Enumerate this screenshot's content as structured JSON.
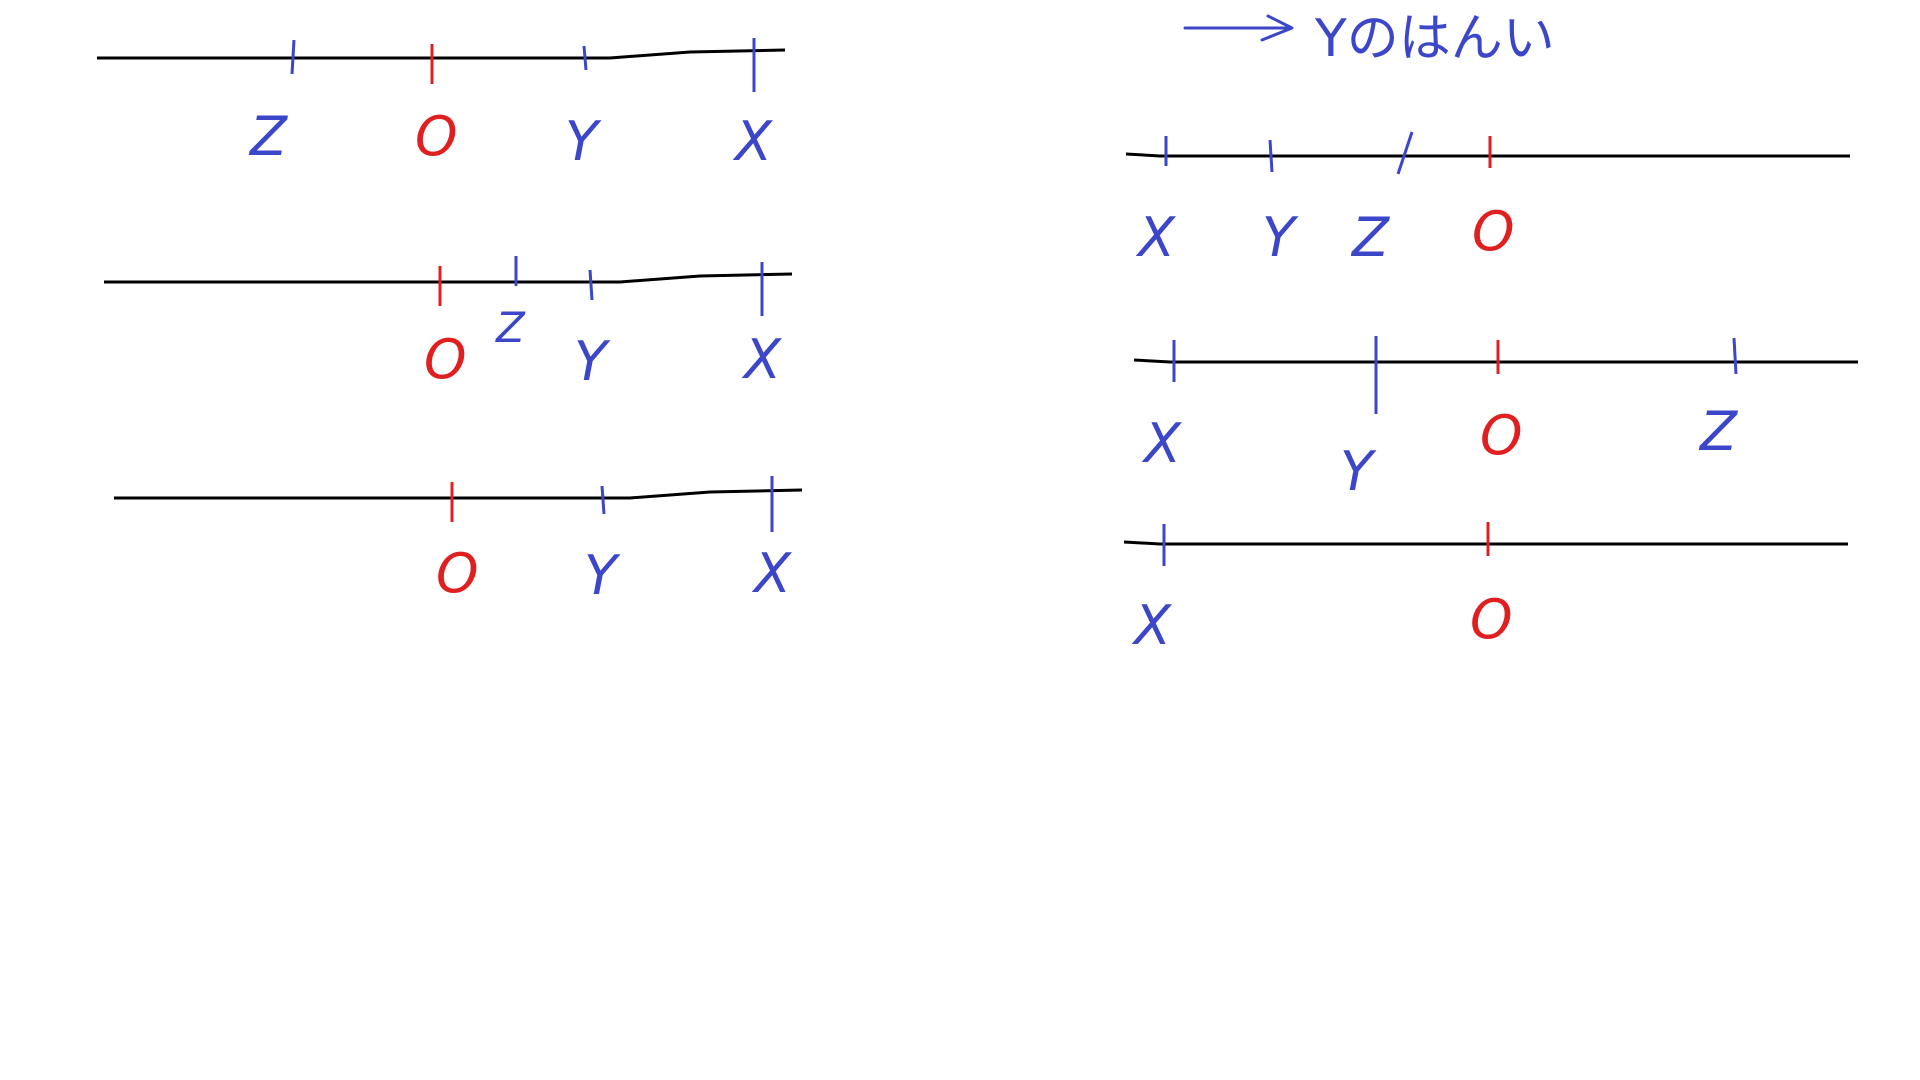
{
  "colors": {
    "axis": "#000000",
    "point": "#3c46c8",
    "origin": "#e02020",
    "background": "#ffffff"
  },
  "note": {
    "text": "Yのはんい"
  },
  "lines": [
    {
      "id": "left-line-1",
      "ticks": [
        {
          "label": "Z",
          "role": "point"
        },
        {
          "label": "O",
          "role": "origin"
        },
        {
          "label": "Y",
          "role": "point"
        },
        {
          "label": "X",
          "role": "point"
        }
      ]
    },
    {
      "id": "left-line-2",
      "ticks": [
        {
          "label": "O",
          "role": "origin"
        },
        {
          "label": "Z",
          "role": "point"
        },
        {
          "label": "Y",
          "role": "point"
        },
        {
          "label": "X",
          "role": "point"
        }
      ]
    },
    {
      "id": "left-line-3",
      "ticks": [
        {
          "label": "O",
          "role": "origin"
        },
        {
          "label": "Y",
          "role": "point"
        },
        {
          "label": "X",
          "role": "point"
        }
      ]
    },
    {
      "id": "right-line-1",
      "ticks": [
        {
          "label": "X",
          "role": "point"
        },
        {
          "label": "Y",
          "role": "point"
        },
        {
          "label": "Z",
          "role": "point"
        },
        {
          "label": "O",
          "role": "origin"
        }
      ]
    },
    {
      "id": "right-line-2",
      "ticks": [
        {
          "label": "X",
          "role": "point"
        },
        {
          "label": "Y",
          "role": "point"
        },
        {
          "label": "O",
          "role": "origin"
        },
        {
          "label": "Z",
          "role": "point"
        }
      ]
    },
    {
      "id": "right-line-3",
      "ticks": [
        {
          "label": "X",
          "role": "point"
        },
        {
          "label": "O",
          "role": "origin"
        }
      ]
    }
  ]
}
